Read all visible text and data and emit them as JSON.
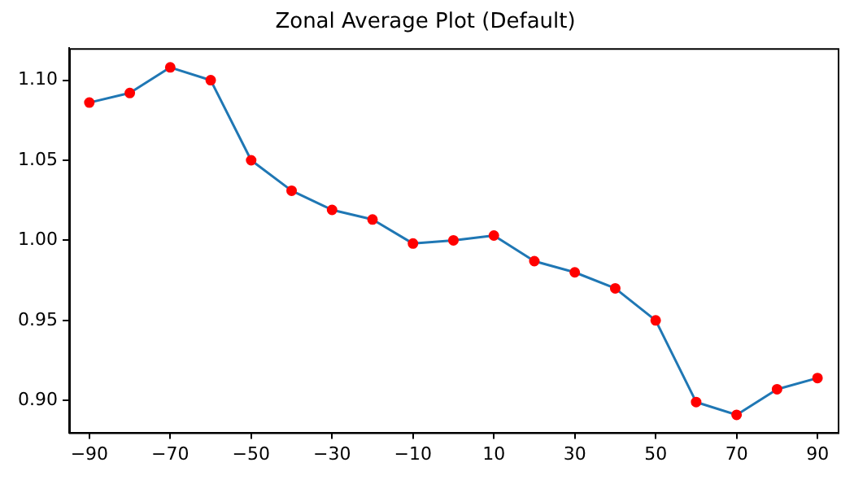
{
  "chart_data": {
    "type": "line",
    "title": "Zonal Average Plot (Default)",
    "x": [
      -90,
      -80,
      -70,
      -60,
      -50,
      -40,
      -30,
      -20,
      -10,
      0,
      10,
      20,
      30,
      40,
      50,
      60,
      70,
      80,
      90
    ],
    "series": [
      {
        "color": "#1f77b4",
        "colors": [
          "#ff0000",
          "#ff0000",
          "#ff0000",
          "#ff0000",
          "#ff0000",
          "#ff0000",
          "#ff0000",
          "#ff0000",
          "#ff0000",
          "#ff0000",
          "#ff0000",
          "#ff0000",
          "#ff0000",
          "#ff0000",
          "#ff0000",
          "#ff0000",
          "#ff0000",
          "#ff0000",
          "#ff0000"
        ],
        "values": [
          1.086,
          1.092,
          1.108,
          1.1,
          1.05,
          1.031,
          1.019,
          1.013,
          0.998,
          1.0,
          1.003,
          0.987,
          0.98,
          0.97,
          0.95,
          0.899,
          0.891,
          0.907,
          0.914
        ]
      }
    ],
    "xlim": [
      -95,
      95
    ],
    "xticks": [
      -90,
      -70,
      -50,
      -30,
      -10,
      10,
      30,
      50,
      70,
      90
    ],
    "ylim": [
      0.88,
      1.12
    ],
    "yticks": [
      {
        "value": 0.9,
        "label": "0.90"
      },
      0.95,
      {
        "value": 1,
        "label": "1.00"
      },
      1.05,
      {
        "value": 1.1,
        "label": "1.10"
      }
    ],
    "grid": false,
    "legend": false,
    "marker": "circle",
    "line_style": "solid"
  }
}
